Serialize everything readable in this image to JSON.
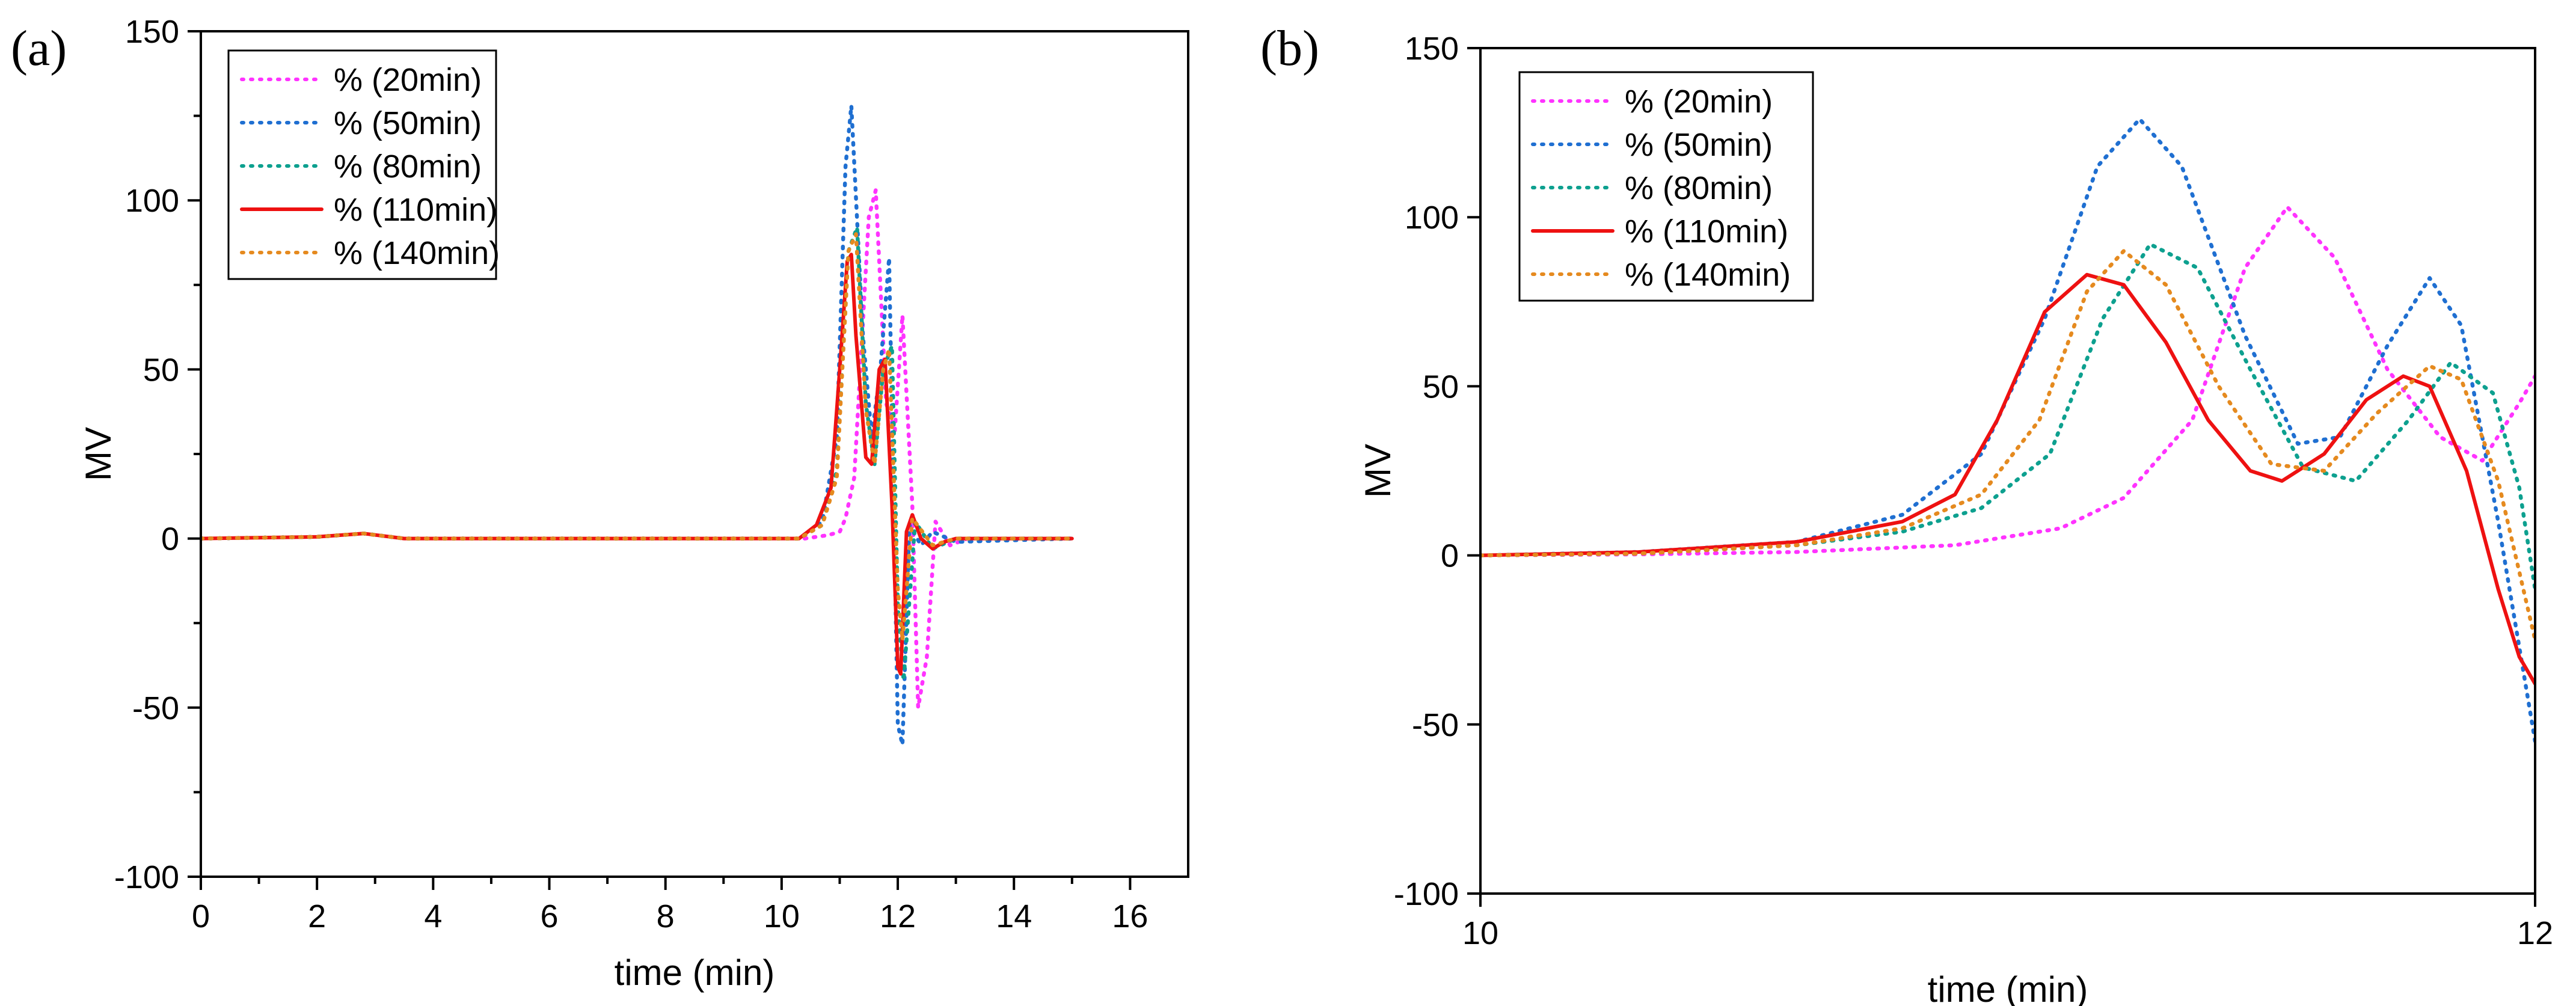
{
  "chart_data": [
    {
      "panel": "(a)",
      "type": "line",
      "xlabel": "time (min)",
      "ylabel": "MV",
      "xlim": [
        0,
        17
      ],
      "ylim": [
        -100,
        150
      ],
      "xticks": [
        0,
        2,
        4,
        6,
        8,
        10,
        12,
        14,
        16
      ],
      "yticks": [
        -100,
        -50,
        0,
        50,
        100,
        150
      ],
      "legend": [
        "% (20min)",
        "% (50min)",
        "% (80min)",
        "% (110min)",
        "% (140min)"
      ],
      "series": [
        {
          "name": "% (20min)",
          "color": "#ff33ff",
          "style": "dotted",
          "x": [
            0,
            2,
            2.8,
            3.5,
            10.4,
            10.8,
            11.0,
            11.1,
            11.25,
            11.5,
            11.62,
            11.8,
            11.95,
            12.08,
            12.25,
            12.35,
            12.5,
            12.65,
            12.9,
            13.2,
            15
          ],
          "y": [
            0,
            0.5,
            1.5,
            0,
            0,
            1,
            2,
            6,
            18,
            95,
            103,
            40,
            32,
            66,
            10,
            -50,
            -35,
            5,
            -2,
            0,
            0
          ]
        },
        {
          "name": "% (50min)",
          "color": "#1f6fd1",
          "style": "dotted",
          "x": [
            0,
            2,
            2.8,
            3.5,
            10.3,
            10.7,
            10.95,
            11.1,
            11.2,
            11.4,
            11.55,
            11.7,
            11.85,
            12.0,
            12.08,
            12.2,
            12.4,
            12.6,
            13.0,
            15
          ],
          "y": [
            0,
            0.5,
            1.5,
            0,
            0,
            5,
            30,
            110,
            128,
            60,
            30,
            50,
            83,
            -55,
            -61,
            4,
            -2,
            2,
            -1,
            0
          ]
        },
        {
          "name": "% (80min)",
          "color": "#0da08f",
          "style": "dotted",
          "x": [
            0,
            2,
            2.8,
            3.5,
            10.3,
            10.7,
            10.95,
            11.15,
            11.3,
            11.45,
            11.6,
            11.75,
            11.9,
            12.0,
            12.1,
            12.3,
            12.6,
            13.0,
            15
          ],
          "y": [
            0,
            0.5,
            1.5,
            0,
            0,
            4,
            20,
            85,
            92,
            40,
            22,
            50,
            57,
            -20,
            -42,
            5,
            -3,
            0,
            0
          ]
        },
        {
          "name": "% (110min)",
          "color": "#ee1111",
          "style": "solid",
          "x": [
            0,
            2,
            2.8,
            3.5,
            10.3,
            10.6,
            10.85,
            11.0,
            11.13,
            11.2,
            11.28,
            11.45,
            11.55,
            11.68,
            11.78,
            11.9,
            12.0,
            12.05,
            12.15,
            12.25,
            12.4,
            12.6,
            12.8,
            13.0,
            15
          ],
          "y": [
            0,
            0.5,
            1.5,
            0,
            0,
            4,
            15,
            50,
            82,
            84,
            60,
            24,
            22,
            50,
            53,
            10,
            -38,
            -40,
            2,
            7,
            0,
            -3,
            -1,
            0,
            0
          ]
        },
        {
          "name": "% (140min)",
          "color": "#e58a1f",
          "style": "dotted",
          "x": [
            0,
            2,
            2.8,
            3.5,
            10.3,
            10.7,
            10.95,
            11.15,
            11.28,
            11.45,
            11.6,
            11.75,
            11.85,
            12.0,
            12.08,
            12.25,
            12.6,
            13.0,
            15
          ],
          "y": [
            0,
            0.5,
            1.5,
            0,
            0,
            4,
            18,
            85,
            90,
            38,
            22,
            50,
            56,
            -15,
            -30,
            6,
            -2,
            0,
            0
          ]
        }
      ]
    },
    {
      "panel": "(b)",
      "type": "line",
      "xlabel": "time (min)",
      "ylabel": "MV",
      "xlim": [
        10,
        12
      ],
      "ylim": [
        -100,
        150
      ],
      "xticks": [
        10,
        12
      ],
      "yticks": [
        -100,
        -50,
        0,
        50,
        100,
        150
      ],
      "legend": [
        "% (20min)",
        "% (50min)",
        "% (80min)",
        "% (110min)",
        "% (140min)"
      ],
      "series": [
        {
          "name": "% (20min)",
          "color": "#ff33ff",
          "style": "dotted",
          "x": [
            10.0,
            10.3,
            10.6,
            10.9,
            11.1,
            11.22,
            11.35,
            11.45,
            11.53,
            11.62,
            11.72,
            11.82,
            11.9,
            11.97,
            12.0
          ],
          "y": [
            0,
            0.3,
            1,
            3,
            8,
            17,
            40,
            85,
            103,
            88,
            55,
            35,
            28,
            45,
            53
          ]
        },
        {
          "name": "% (50min)",
          "color": "#1f6fd1",
          "style": "dotted",
          "x": [
            10.0,
            10.3,
            10.6,
            10.8,
            10.95,
            11.07,
            11.17,
            11.25,
            11.33,
            11.45,
            11.55,
            11.63,
            11.72,
            11.8,
            11.86,
            11.93,
            12.0
          ],
          "y": [
            0,
            1,
            4,
            12,
            30,
            70,
            115,
            129,
            115,
            65,
            33,
            35,
            62,
            82,
            68,
            10,
            -55
          ]
        },
        {
          "name": "% (80min)",
          "color": "#0da08f",
          "style": "dotted",
          "x": [
            10.0,
            10.3,
            10.6,
            10.8,
            10.95,
            11.08,
            11.18,
            11.27,
            11.36,
            11.46,
            11.56,
            11.66,
            11.76,
            11.84,
            11.92,
            11.97,
            12.0
          ],
          "y": [
            0,
            0.5,
            3,
            7,
            14,
            30,
            70,
            92,
            85,
            55,
            26,
            22,
            40,
            57,
            48,
            20,
            -10
          ]
        },
        {
          "name": "% (110min)",
          "color": "#ee1111",
          "style": "solid",
          "x": [
            10.0,
            10.3,
            10.6,
            10.8,
            10.9,
            10.98,
            11.07,
            11.15,
            11.22,
            11.3,
            11.38,
            11.46,
            11.52,
            11.6,
            11.68,
            11.75,
            11.8,
            11.87,
            11.93,
            11.97,
            12.0
          ],
          "y": [
            0,
            1,
            4,
            10,
            18,
            40,
            72,
            83,
            80,
            63,
            40,
            25,
            22,
            30,
            46,
            53,
            50,
            25,
            -10,
            -30,
            -38
          ]
        },
        {
          "name": "% (140min)",
          "color": "#e58a1f",
          "style": "dotted",
          "x": [
            10.0,
            10.3,
            10.6,
            10.8,
            10.95,
            11.06,
            11.15,
            11.22,
            11.3,
            11.4,
            11.5,
            11.6,
            11.7,
            11.8,
            11.86,
            11.93,
            12.0
          ],
          "y": [
            0,
            0.5,
            3,
            8,
            18,
            40,
            78,
            90,
            80,
            50,
            27,
            25,
            42,
            56,
            52,
            22,
            -25
          ]
        }
      ]
    }
  ]
}
